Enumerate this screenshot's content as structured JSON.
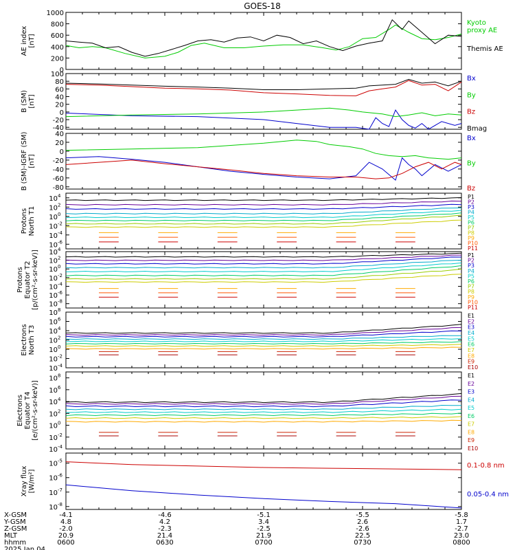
{
  "title": "GOES-18",
  "footer": {
    "rows": [
      {
        "label": "X-GSM",
        "values": [
          "-4.1",
          "-4.6",
          "-5.1",
          "-5.5",
          "-5.8"
        ]
      },
      {
        "label": "Y-GSM",
        "values": [
          "4.8",
          "4.2",
          "3.4",
          "2.6",
          "1.7"
        ]
      },
      {
        "label": "Z-GSM",
        "values": [
          "-2.0",
          "-2.3",
          "-2.5",
          "-2.6",
          "-2.7"
        ]
      },
      {
        "label": "MLT",
        "values": [
          "20.9",
          "21.4",
          "21.9",
          "22.5",
          "23.0"
        ]
      },
      {
        "label": "hhmm",
        "values": [
          "0600",
          "0630",
          "0700",
          "0730",
          "0800"
        ]
      }
    ],
    "date": "2025 Jan 04"
  },
  "colors": {
    "black": "#000000",
    "blue": "#0000cc",
    "green": "#00cc00",
    "red": "#cc0000",
    "P": [
      "#000000",
      "#660099",
      "#0000cc",
      "#00aacc",
      "#00cccc",
      "#00cc66",
      "#99cc00",
      "#cccc00",
      "#ffaa00",
      "#ff5500",
      "#cc0000"
    ],
    "E": [
      "#000000",
      "#660099",
      "#0000cc",
      "#00aacc",
      "#00cccc",
      "#00cc66",
      "#cccc00",
      "#ffaa00",
      "#cc2200",
      "#aa0000"
    ]
  },
  "chart_data": [
    {
      "type": "line",
      "id": "ae",
      "ylabel": "AE index\n[nT]",
      "xlim": [
        0,
        120
      ],
      "ylim": [
        0,
        1000
      ],
      "scale": "linear",
      "yticks": [
        0,
        200,
        400,
        600,
        800,
        1000
      ],
      "series": [
        {
          "name": "Kyoto\nproxy AE",
          "color": "#00cc00",
          "x": [
            0,
            4,
            8,
            12,
            18,
            24,
            30,
            34,
            38,
            42,
            48,
            54,
            60,
            66,
            72,
            78,
            82,
            86,
            90,
            94,
            98,
            100,
            104,
            108,
            112,
            116,
            120
          ],
          "y": [
            420,
            380,
            400,
            380,
            280,
            200,
            230,
            300,
            420,
            460,
            380,
            380,
            410,
            430,
            430,
            380,
            340,
            400,
            540,
            560,
            700,
            780,
            650,
            540,
            520,
            560,
            620
          ]
        },
        {
          "name": "Themis AE",
          "color": "#000000",
          "x": [
            0,
            4,
            8,
            12,
            16,
            20,
            24,
            28,
            32,
            36,
            40,
            44,
            48,
            52,
            56,
            60,
            64,
            68,
            72,
            76,
            80,
            84,
            88,
            92,
            96,
            99,
            102,
            104,
            108,
            112,
            116,
            120
          ],
          "y": [
            500,
            480,
            460,
            380,
            400,
            300,
            230,
            280,
            350,
            420,
            500,
            520,
            480,
            550,
            570,
            500,
            600,
            560,
            450,
            500,
            400,
            330,
            410,
            460,
            500,
            870,
            700,
            850,
            650,
            450,
            600,
            580
          ]
        }
      ]
    },
    {
      "type": "line",
      "id": "bsm",
      "ylabel": "B (SM)\n[nT]",
      "xlim": [
        0,
        120
      ],
      "ylim": [
        -45,
        100
      ],
      "scale": "linear",
      "yticks": [
        -40,
        -20,
        0,
        20,
        40,
        60,
        80,
        100
      ],
      "series": [
        {
          "name": "Bx",
          "color": "#0000cc",
          "x": [
            0,
            20,
            40,
            60,
            70,
            80,
            88,
            92,
            94,
            96,
            98,
            100,
            102,
            104,
            106,
            108,
            110,
            114,
            118,
            120
          ],
          "y": [
            -3,
            -10,
            -12,
            -20,
            -30,
            -40,
            -40,
            -45,
            -15,
            -30,
            -38,
            5,
            -20,
            -35,
            -42,
            -30,
            -45,
            -25,
            -35,
            -30
          ]
        },
        {
          "name": "By",
          "color": "#00cc00",
          "x": [
            0,
            20,
            40,
            60,
            70,
            80,
            86,
            90,
            96,
            100,
            104,
            108,
            112,
            116,
            120
          ],
          "y": [
            -12,
            -8,
            -5,
            0,
            5,
            10,
            5,
            0,
            -5,
            -12,
            -8,
            -2,
            -10,
            -5,
            -8
          ]
        },
        {
          "name": "Bz",
          "color": "#cc0000",
          "x": [
            0,
            10,
            20,
            30,
            40,
            50,
            60,
            70,
            80,
            88,
            92,
            96,
            100,
            104,
            108,
            112,
            116,
            120
          ],
          "y": [
            72,
            70,
            66,
            62,
            60,
            57,
            50,
            47,
            43,
            42,
            55,
            60,
            65,
            82,
            70,
            72,
            55,
            78
          ]
        },
        {
          "name": "Bmag",
          "color": "#000000",
          "x": [
            0,
            10,
            20,
            30,
            40,
            50,
            60,
            70,
            80,
            88,
            92,
            96,
            100,
            104,
            108,
            112,
            116,
            120
          ],
          "y": [
            75,
            73,
            70,
            67,
            65,
            62,
            58,
            58,
            60,
            62,
            68,
            70,
            72,
            85,
            75,
            78,
            68,
            80
          ]
        }
      ]
    },
    {
      "type": "line",
      "id": "bigrf",
      "ylabel": "B (SM)-IGRF (SM)\n[nT]",
      "xlim": [
        0,
        120
      ],
      "ylim": [
        -85,
        40
      ],
      "scale": "linear",
      "yticks": [
        -80,
        -60,
        -40,
        -20,
        0,
        20,
        40
      ],
      "series": [
        {
          "name": "Bx",
          "color": "#0000cc",
          "x": [
            0,
            10,
            20,
            30,
            40,
            50,
            60,
            70,
            80,
            88,
            92,
            96,
            100,
            102,
            104,
            106,
            108,
            112,
            116,
            120
          ],
          "y": [
            -15,
            -12,
            -18,
            -25,
            -35,
            -45,
            -52,
            -58,
            -62,
            -55,
            -25,
            -40,
            -65,
            -15,
            -30,
            -40,
            -55,
            -30,
            -45,
            -30
          ]
        },
        {
          "name": "By",
          "color": "#00cc00",
          "x": [
            0,
            20,
            40,
            60,
            70,
            76,
            80,
            86,
            90,
            94,
            98,
            102,
            106,
            110,
            116,
            120
          ],
          "y": [
            2,
            5,
            8,
            18,
            25,
            22,
            15,
            10,
            5,
            -5,
            -10,
            -12,
            -10,
            -15,
            -18,
            -15
          ]
        },
        {
          "name": "Bz",
          "color": "#cc0000",
          "x": [
            0,
            10,
            20,
            30,
            40,
            50,
            60,
            70,
            80,
            88,
            94,
            98,
            102,
            106,
            110,
            114,
            118,
            120
          ],
          "y": [
            -30,
            -25,
            -20,
            -28,
            -35,
            -42,
            -50,
            -55,
            -58,
            -58,
            -62,
            -60,
            -50,
            -35,
            -25,
            -40,
            -25,
            -30
          ]
        }
      ]
    },
    {
      "type": "line",
      "id": "pn",
      "ylabel": "Protons\nNorth T1",
      "xlim": [
        0,
        120
      ],
      "ylim": [
        -7,
        5
      ],
      "scale": "log10",
      "log_exponents": [
        -6,
        -4,
        -2,
        0,
        2,
        4
      ],
      "levels": [
        "P1",
        "P2",
        "P3",
        "P4",
        "P5",
        "P6",
        "P7",
        "P8",
        "P9",
        "P10",
        "P11"
      ],
      "series_log10_baseline": [
        3.5,
        2.5,
        1.6,
        0.6,
        -0.2,
        -0.9,
        -1.6,
        -2.3,
        -3.5,
        -4.5,
        -5.5
      ],
      "series_log10_rise_at_end": [
        0.5,
        0.8,
        1.0,
        1.3,
        1.5,
        1.6,
        1.8,
        1.5,
        0,
        0,
        0
      ]
    },
    {
      "type": "line",
      "id": "pe",
      "ylabel": "Protons\nEquator T2\n[p/(cm²-s-sr-keV)]",
      "xlim": [
        0,
        120
      ],
      "ylim": [
        -9,
        4
      ],
      "scale": "log10",
      "log_exponents": [
        -8,
        -6,
        -4,
        -2,
        0,
        2,
        4
      ],
      "levels": [
        "P1",
        "P2",
        "P3",
        "P4",
        "P5",
        "P6",
        "P7",
        "P8",
        "P9",
        "P10",
        "P11"
      ],
      "series_log10_baseline": [
        2.8,
        2,
        1.2,
        0.3,
        -0.6,
        -1.5,
        -2.3,
        -3,
        -4.5,
        -5.5,
        -6.5
      ],
      "series_log10_rise_at_end": [
        0.8,
        1.2,
        1.6,
        1.8,
        2,
        2.2,
        2.2,
        1.8,
        0,
        0,
        0
      ]
    },
    {
      "type": "line",
      "id": "en",
      "ylabel": "Electrons\nNorth T3",
      "xlim": [
        0,
        120
      ],
      "ylim": [
        -4,
        8
      ],
      "scale": "log10",
      "log_exponents": [
        -4,
        -2,
        0,
        2,
        4,
        6,
        8
      ],
      "levels": [
        "E1",
        "E2",
        "E3",
        "E4",
        "E5",
        "E6",
        "E7",
        "E8",
        "E9",
        "E10"
      ],
      "series_log10_baseline": [
        3.5,
        3.1,
        2.7,
        2.2,
        1.7,
        1.2,
        0.7,
        0.1,
        -0.5,
        -1.2
      ],
      "series_log10_rise_at_end": [
        1.8,
        1.6,
        1.3,
        0.8,
        0.6,
        0.4,
        0.3,
        0.3,
        0.3,
        0.3
      ]
    },
    {
      "type": "line",
      "id": "ee",
      "ylabel": "Electrons\nEquator T4\n[e/(cm²-s-sr-keV)]",
      "xlim": [
        0,
        120
      ],
      "ylim": [
        -4,
        9
      ],
      "scale": "log10",
      "log_exponents": [
        -4,
        -2,
        0,
        2,
        4,
        6,
        8
      ],
      "levels": [
        "E1",
        "E2",
        "E3",
        "E4",
        "E5",
        "E6",
        "E7",
        "E8",
        "E9",
        "E10"
      ],
      "series_log10_baseline": [
        3.9,
        3.6,
        3.2,
        2.7,
        2.2,
        1.7,
        1.2,
        0.6,
        -1.2,
        -1.8
      ],
      "series_log10_rise_at_end": [
        1.4,
        1.3,
        1.1,
        0.7,
        0.5,
        0.3,
        0.2,
        0.2,
        0.6,
        0.6
      ]
    },
    {
      "type": "line",
      "id": "xray",
      "ylabel": "Xray flux\n[W/m²]",
      "xlim": [
        0,
        120
      ],
      "ylim": [
        -8.2,
        -4.3
      ],
      "scale": "log10",
      "log_exponents": [
        -8,
        -7,
        -6,
        -5
      ],
      "series": [
        {
          "name": "0.1-0.8 nm",
          "color": "#cc0000",
          "x": [
            0,
            20,
            40,
            60,
            80,
            100,
            120
          ],
          "y": [
            -4.9,
            -5.1,
            -5.2,
            -5.3,
            -5.35,
            -5.4,
            -5.45
          ]
        },
        {
          "name": "0.05-0.4 nm",
          "color": "#0000cc",
          "x": [
            0,
            20,
            40,
            60,
            80,
            100,
            120
          ],
          "y": [
            -6.5,
            -6.9,
            -7.2,
            -7.45,
            -7.65,
            -7.8,
            -8.1
          ]
        }
      ]
    }
  ]
}
